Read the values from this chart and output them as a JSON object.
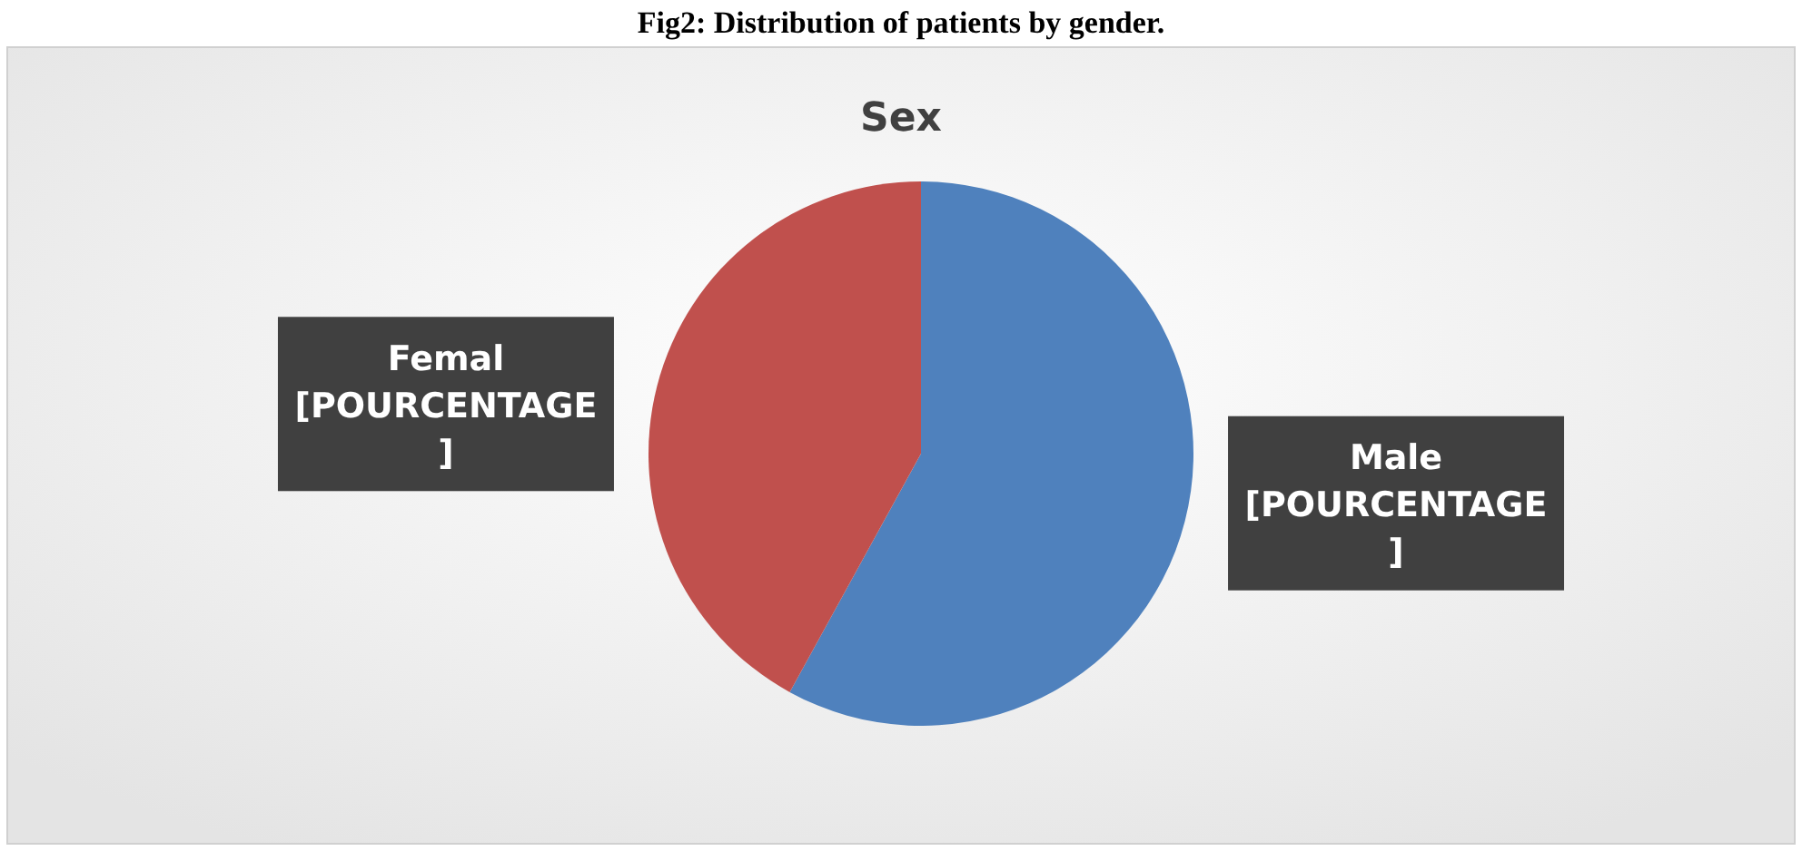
{
  "chart_data": {
    "type": "pie",
    "title": "Sex",
    "annotations": [
      "Fig2: Distribution of patients by gender."
    ],
    "categories": [
      "Male",
      "Femal"
    ],
    "values": [
      58,
      42
    ],
    "colors": [
      "#4f81bd",
      "#c0504d"
    ],
    "value_labels": [
      "[POURCENTAGE]",
      "[POURCENTAGE]"
    ]
  }
}
